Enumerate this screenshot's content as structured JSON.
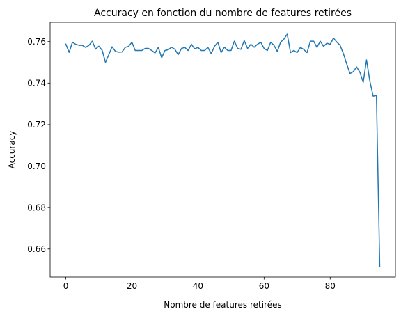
{
  "chart_data": {
    "type": "line",
    "title": "Accuracy en fonction du nombre de features retirées",
    "xlabel": "Nombre de features retirées",
    "ylabel": "Accuracy",
    "xlim": [
      -4.75,
      99.75
    ],
    "ylim": [
      0.6465,
      0.7693
    ],
    "x_ticks": [
      0,
      20,
      40,
      60,
      80
    ],
    "x_tick_labels": [
      "0",
      "20",
      "40",
      "60",
      "80"
    ],
    "y_ticks": [
      0.66,
      0.68,
      0.7,
      0.72,
      0.74,
      0.76
    ],
    "y_tick_labels": [
      "0.66",
      "0.68",
      "0.70",
      "0.72",
      "0.74",
      "0.76"
    ],
    "grid": false,
    "legend": "none",
    "series": [
      {
        "color": "#1f77b4",
        "x": [
          0,
          1,
          2,
          3,
          4,
          5,
          6,
          7,
          8,
          9,
          10,
          11,
          12,
          13,
          14,
          15,
          16,
          17,
          18,
          19,
          20,
          21,
          22,
          23,
          24,
          25,
          26,
          27,
          28,
          29,
          30,
          31,
          32,
          33,
          34,
          35,
          36,
          37,
          38,
          39,
          40,
          41,
          42,
          43,
          44,
          45,
          46,
          47,
          48,
          49,
          50,
          51,
          52,
          53,
          54,
          55,
          56,
          57,
          58,
          59,
          60,
          61,
          62,
          63,
          64,
          65,
          66,
          67,
          68,
          69,
          70,
          71,
          72,
          73,
          74,
          75,
          76,
          77,
          78,
          79,
          80,
          81,
          82,
          83,
          84,
          85,
          86,
          87,
          88,
          89,
          90,
          91,
          92,
          93,
          94,
          95
        ],
        "values": [
          0.7588,
          0.7548,
          0.7597,
          0.7587,
          0.7582,
          0.7582,
          0.7572,
          0.7582,
          0.7602,
          0.7564,
          0.7578,
          0.7558,
          0.75,
          0.7537,
          0.7575,
          0.7553,
          0.7549,
          0.755,
          0.7572,
          0.7577,
          0.7597,
          0.7557,
          0.7557,
          0.7557,
          0.7567,
          0.7567,
          0.7557,
          0.7545,
          0.7572,
          0.7522,
          0.7557,
          0.7561,
          0.7573,
          0.7563,
          0.7537,
          0.7567,
          0.7572,
          0.7557,
          0.7587,
          0.7565,
          0.7572,
          0.7557,
          0.7557,
          0.7572,
          0.7542,
          0.7577,
          0.7597,
          0.7547,
          0.7573,
          0.7557,
          0.7557,
          0.7602,
          0.7567,
          0.7563,
          0.7605,
          0.7567,
          0.7587,
          0.7573,
          0.7587,
          0.7597,
          0.7567,
          0.7557,
          0.7597,
          0.7582,
          0.7552,
          0.7597,
          0.7612,
          0.7636,
          0.7547,
          0.7557,
          0.7547,
          0.7572,
          0.7562,
          0.7547,
          0.7602,
          0.7602,
          0.7572,
          0.7602,
          0.7577,
          0.7592,
          0.7587,
          0.7617,
          0.7598,
          0.7582,
          0.7542,
          0.7492,
          0.7446,
          0.7455,
          0.7478,
          0.7452,
          0.7403,
          0.7512,
          0.741,
          0.7337,
          0.734,
          0.6517
        ]
      }
    ]
  }
}
